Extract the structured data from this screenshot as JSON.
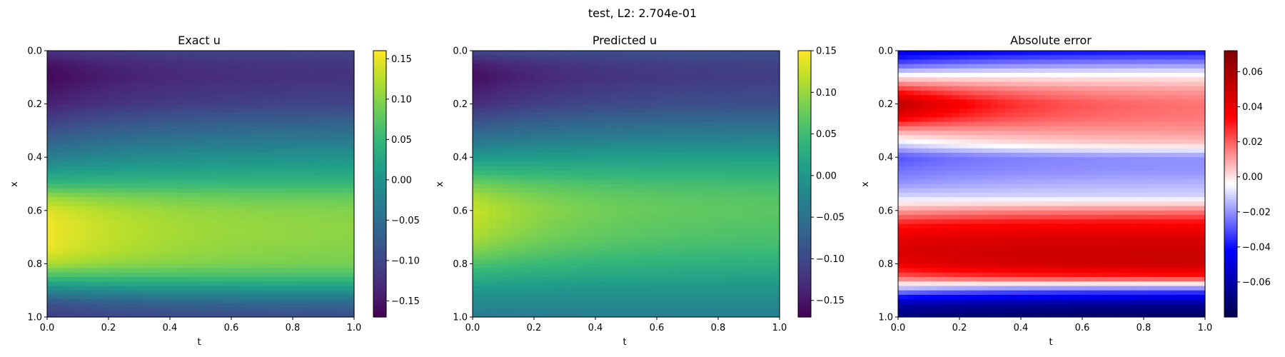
{
  "figure": {
    "suptitle": "test, L2: 2.704e-01"
  },
  "chart_data": [
    {
      "type": "heatmap",
      "title": "Exact u",
      "xlabel": "t",
      "ylabel": "x",
      "xlim": [
        0.0,
        1.0
      ],
      "ylim": [
        1.0,
        0.0
      ],
      "x_ticks": [
        "0.0",
        "0.2",
        "0.4",
        "0.6",
        "0.8",
        "1.0"
      ],
      "y_ticks": [
        "0.0",
        "0.2",
        "0.4",
        "0.6",
        "0.8",
        "1.0"
      ],
      "colormap": "viridis",
      "clim": [
        -0.17,
        0.16
      ],
      "colorbar_ticks": [
        0.15,
        0.1,
        0.05,
        0.0,
        -0.05,
        -0.1,
        -0.15
      ],
      "colorbar_tick_labels": [
        "0.15",
        "0.10",
        "0.05",
        "0.00",
        "−0.05",
        "−0.10",
        "−0.15"
      ],
      "profile_x": [
        0.0,
        0.05,
        0.1,
        0.2,
        0.3,
        0.4,
        0.5,
        0.55,
        0.6,
        0.65,
        0.7,
        0.75,
        0.8,
        0.85,
        0.9,
        0.95,
        1.0
      ],
      "profile_t0": [
        -0.12,
        -0.155,
        -0.165,
        -0.14,
        -0.09,
        -0.03,
        0.05,
        0.11,
        0.145,
        0.155,
        0.155,
        0.15,
        0.12,
        0.06,
        -0.02,
        -0.09,
        -0.11
      ],
      "profile_t1": [
        -0.1,
        -0.115,
        -0.12,
        -0.1,
        -0.05,
        0.0,
        0.05,
        0.08,
        0.095,
        0.1,
        0.1,
        0.095,
        0.09,
        0.06,
        0.0,
        -0.06,
        -0.09
      ]
    },
    {
      "type": "heatmap",
      "title": "Predicted u",
      "xlabel": "t",
      "ylabel": "x",
      "xlim": [
        0.0,
        1.0
      ],
      "ylim": [
        1.0,
        0.0
      ],
      "x_ticks": [
        "0.0",
        "0.2",
        "0.4",
        "0.6",
        "0.8",
        "1.0"
      ],
      "y_ticks": [
        "0.0",
        "0.2",
        "0.4",
        "0.6",
        "0.8",
        "1.0"
      ],
      "colormap": "viridis",
      "clim": [
        -0.17,
        0.15
      ],
      "colorbar_ticks": [
        0.15,
        0.1,
        0.05,
        0.0,
        -0.05,
        -0.1,
        -0.15
      ],
      "colorbar_tick_labels": [
        "0.15",
        "0.10",
        "0.05",
        "0.00",
        "−0.05",
        "−0.10",
        "−0.15"
      ],
      "profile_x": [
        0.0,
        0.05,
        0.1,
        0.2,
        0.3,
        0.4,
        0.5,
        0.55,
        0.6,
        0.65,
        0.7,
        0.75,
        0.8,
        0.85,
        0.9,
        0.95,
        1.0
      ],
      "profile_t0": [
        -0.1,
        -0.145,
        -0.16,
        -0.13,
        -0.07,
        0.0,
        0.08,
        0.11,
        0.125,
        0.12,
        0.11,
        0.09,
        0.06,
        0.03,
        0.0,
        -0.02,
        -0.04
      ],
      "profile_t1": [
        -0.09,
        -0.105,
        -0.11,
        -0.09,
        -0.04,
        0.01,
        0.05,
        0.06,
        0.065,
        0.06,
        0.055,
        0.045,
        0.03,
        0.015,
        -0.005,
        -0.02,
        -0.03
      ]
    },
    {
      "type": "heatmap",
      "title": "Absolute error",
      "xlabel": "t",
      "ylabel": "x",
      "xlim": [
        0.0,
        1.0
      ],
      "ylim": [
        1.0,
        0.0
      ],
      "x_ticks": [
        "0.0",
        "0.2",
        "0.4",
        "0.6",
        "0.8",
        "1.0"
      ],
      "y_ticks": [
        "0.0",
        "0.2",
        "0.4",
        "0.6",
        "0.8",
        "1.0"
      ],
      "colormap": "seismic",
      "clim": [
        -0.08,
        0.072
      ],
      "colorbar_ticks": [
        0.06,
        0.04,
        0.02,
        0.0,
        -0.02,
        -0.04,
        -0.06
      ],
      "colorbar_tick_labels": [
        "0.06",
        "0.04",
        "0.02",
        "0.00",
        "−0.02",
        "−0.04",
        "−0.06"
      ],
      "profile_x": [
        0.0,
        0.05,
        0.1,
        0.15,
        0.2,
        0.25,
        0.3,
        0.35,
        0.4,
        0.45,
        0.5,
        0.55,
        0.6,
        0.65,
        0.7,
        0.75,
        0.8,
        0.85,
        0.9,
        0.95,
        1.0
      ],
      "profile_t0": [
        -0.05,
        -0.03,
        0.0,
        0.03,
        0.055,
        0.04,
        0.01,
        -0.01,
        -0.03,
        -0.025,
        -0.02,
        -0.01,
        0.01,
        0.03,
        0.04,
        0.045,
        0.04,
        0.02,
        -0.02,
        -0.06,
        -0.07
      ],
      "profile_t1": [
        -0.04,
        -0.02,
        0.0,
        0.01,
        0.015,
        0.015,
        0.012,
        0.005,
        -0.02,
        -0.02,
        -0.015,
        -0.01,
        0.015,
        0.035,
        0.045,
        0.05,
        0.05,
        0.03,
        -0.03,
        -0.065,
        -0.075
      ]
    }
  ]
}
